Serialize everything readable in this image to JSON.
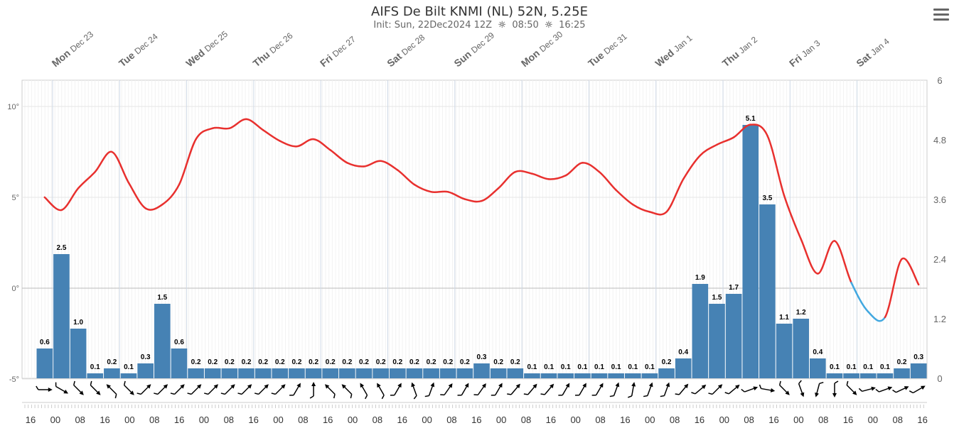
{
  "header": {
    "title": "AIFS De Bilt KNMI (NL) 52N, 5.25E",
    "subtitle": "Init: Sun, 22Dec2024 12Z",
    "sunrise": "08:50",
    "sunset": "16:25"
  },
  "menu_icon": "hamburger-menu-icon",
  "colors": {
    "temp_warm": "#e8302e",
    "temp_cold": "#42a8e0",
    "precip_bar": "#4682b4",
    "grid": "#e6e6e6",
    "zero_line": "#bbbbbb"
  },
  "chart_data": {
    "type": "bar",
    "title": "AIFS De Bilt KNMI (NL) 52N, 5.25E",
    "y_left": {
      "ticks": [
        "10°",
        "5°",
        "0°",
        "-5°"
      ],
      "range": [
        -5,
        11
      ]
    },
    "y_right": {
      "ticks": [
        "6",
        "4.8",
        "3.6",
        "2.4",
        "1.2",
        "0"
      ],
      "range": [
        0,
        6
      ]
    },
    "day_labels": [
      {
        "day": "Mon",
        "date": "Dec 23"
      },
      {
        "day": "Tue",
        "date": "Dec 24"
      },
      {
        "day": "Wed",
        "date": "Dec 25"
      },
      {
        "day": "Thu",
        "date": "Dec 26"
      },
      {
        "day": "Fri",
        "date": "Dec 27"
      },
      {
        "day": "Sat",
        "date": "Dec 28"
      },
      {
        "day": "Sun",
        "date": "Dec 29"
      },
      {
        "day": "Mon",
        "date": "Dec 30"
      },
      {
        "day": "Tue",
        "date": "Dec 31"
      },
      {
        "day": "Wed",
        "date": "Jan 1"
      },
      {
        "day": "Thu",
        "date": "Jan 2"
      },
      {
        "day": "Fri",
        "date": "Jan 3"
      },
      {
        "day": "Sat",
        "date": "Jan 4"
      }
    ],
    "x_hours": [
      "16",
      "00",
      "08",
      "16",
      "00",
      "08",
      "16",
      "00",
      "08",
      "16",
      "00",
      "08",
      "16",
      "00",
      "08",
      "16",
      "00",
      "08",
      "16",
      "00",
      "08",
      "16",
      "00",
      "08",
      "16",
      "00",
      "08",
      "16",
      "00",
      "08",
      "16",
      "00",
      "08",
      "16",
      "00",
      "08",
      "16"
    ],
    "precip_series": {
      "name": "precipitation",
      "values": [
        0.6,
        2.5,
        1.0,
        0.1,
        0.2,
        0.1,
        0.3,
        1.5,
        0.6,
        0.2,
        0.2,
        0.2,
        0.2,
        0.2,
        0.2,
        0.2,
        0.2,
        0.2,
        0.2,
        0.2,
        0.2,
        0.2,
        0.2,
        0.2,
        0.2,
        0.2,
        0.3,
        0.2,
        0.2,
        0.1,
        0.1,
        0.1,
        0.1,
        0.1,
        0.1,
        0.1,
        0.1,
        0.2,
        0.4,
        1.9,
        1.5,
        1.7,
        5.1,
        3.5,
        1.1,
        1.2,
        0.4,
        0.1,
        0.1,
        0.1,
        0.1,
        0.2,
        0.3
      ],
      "labels": [
        "0.6",
        "2.5",
        "1.0",
        "0.1",
        "0.2",
        "0.1",
        "0.3",
        "1.5",
        "0.6",
        "0.2",
        "0.2",
        "0.2",
        "0.2",
        "0.2",
        "0.2",
        "0.2",
        "0.2",
        "0.2",
        "0.2",
        "0.2",
        "0.2",
        "0.2",
        "0.2",
        "0.2",
        "0.2",
        "0.2",
        "0.3",
        "0.2",
        "0.2",
        "0.1",
        "0.1",
        "0.1",
        "0.1",
        "0.1",
        "0.1",
        "0.1",
        "0.1",
        "0.2",
        "0.4",
        "1.9",
        "1.5",
        "1.7",
        "5.1",
        "3.5",
        "1.1",
        "1.2",
        "0.4",
        "0.1",
        "0.1",
        "0.1",
        "0.1",
        "0.2",
        "0.3"
      ]
    },
    "temperature_series": {
      "name": "temperature",
      "values": [
        5.0,
        4.3,
        5.5,
        6.4,
        7.5,
        5.8,
        4.4,
        4.6,
        5.7,
        8.2,
        8.8,
        8.8,
        9.3,
        8.7,
        8.1,
        7.8,
        8.2,
        7.6,
        6.9,
        6.7,
        7.0,
        6.5,
        5.7,
        5.3,
        5.3,
        4.9,
        4.8,
        5.5,
        6.4,
        6.3,
        6.0,
        6.2,
        6.9,
        6.4,
        5.4,
        4.6,
        4.2,
        4.2,
        6.0,
        7.3,
        7.9,
        8.3,
        9.0,
        8.4,
        5.1,
        2.7,
        0.8,
        2.6,
        0.3,
        -1.3,
        -1.6,
        1.6,
        0.2
      ]
    },
    "wind_direction_deg": [
      270,
      300,
      315,
      315,
      135,
      315,
      225,
      225,
      225,
      225,
      225,
      225,
      225,
      225,
      225,
      210,
      180,
      135,
      135,
      150,
      150,
      210,
      160,
      200,
      215,
      210,
      215,
      210,
      220,
      220,
      220,
      210,
      210,
      210,
      200,
      190,
      200,
      200,
      220,
      230,
      225,
      230,
      250,
      280,
      315,
      340,
      15,
      0,
      315,
      255,
      250,
      245,
      240
    ]
  }
}
